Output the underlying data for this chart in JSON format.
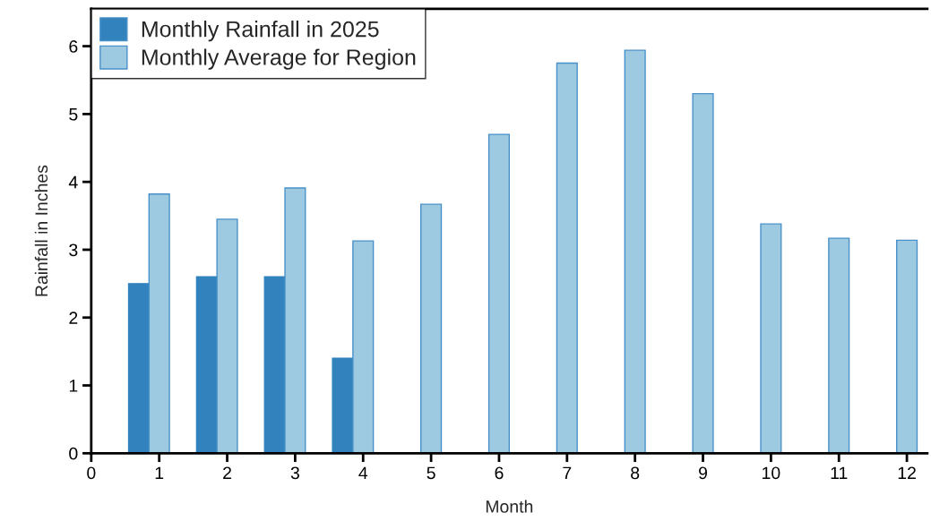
{
  "chart_data": {
    "type": "bar",
    "xlabel": "Month",
    "ylabel": "Rainfall in Inches",
    "x": [
      1,
      2,
      3,
      4,
      5,
      6,
      7,
      8,
      9,
      10,
      11,
      12
    ],
    "series": [
      {
        "name": "Monthly Rainfall in 2025",
        "color": "#3182bd",
        "values": [
          2.5,
          2.6,
          2.6,
          1.4,
          null,
          null,
          null,
          null,
          null,
          null,
          null,
          null
        ]
      },
      {
        "name": "Monthly Average for Region",
        "color": "#9ecae1",
        "values": [
          3.82,
          3.45,
          3.91,
          3.13,
          3.67,
          4.7,
          5.75,
          5.94,
          5.3,
          3.38,
          3.17,
          3.14
        ]
      }
    ],
    "xlim": [
      0,
      12.3
    ],
    "xticks": [
      0,
      1,
      2,
      3,
      4,
      5,
      6,
      7,
      8,
      9,
      10,
      11,
      12
    ],
    "ylim": [
      0,
      6.55
    ],
    "yticks": [
      0,
      1,
      2,
      3,
      4,
      5,
      6
    ],
    "grid": false,
    "legend": "top left"
  }
}
